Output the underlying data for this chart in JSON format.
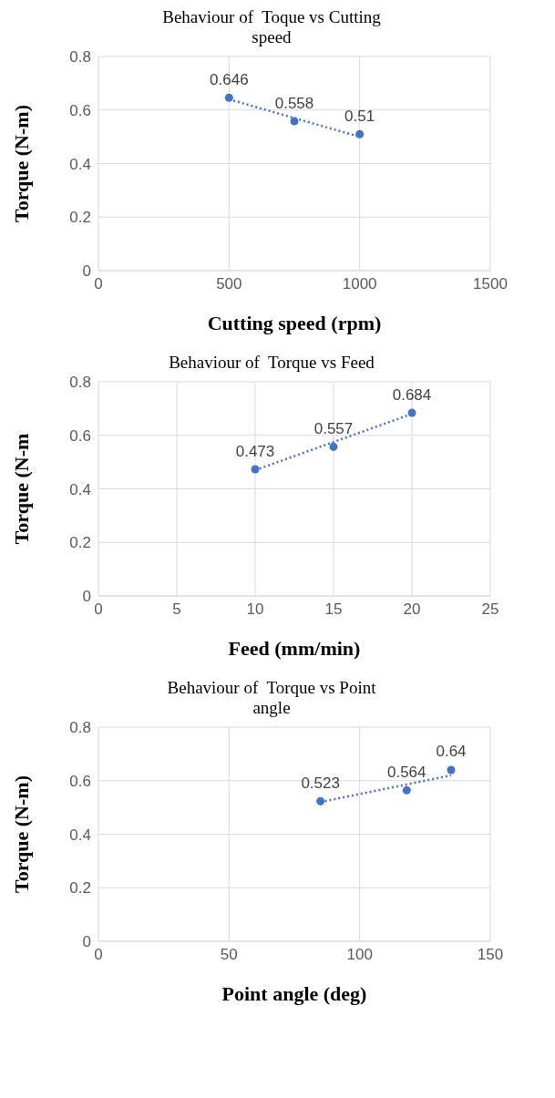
{
  "chart_data": [
    {
      "type": "scatter",
      "title": "Behaviour of  Toque vs Cutting speed",
      "xlabel": "Cutting speed (rpm)",
      "ylabel": "Torque (N-m)",
      "xlim": [
        0,
        1500
      ],
      "xticks": [
        0,
        500,
        1000,
        1500
      ],
      "ylim": [
        0,
        0.8
      ],
      "yticks": [
        0,
        0.2,
        0.4,
        0.6,
        0.8
      ],
      "grid": true,
      "x": [
        500,
        750,
        1000
      ],
      "series": [
        {
          "color": "#4472c4",
          "marker": "circle",
          "values": [
            0.646,
            0.558,
            0.51
          ],
          "value_labels": [
            "0.646",
            "0.558",
            "0.51"
          ]
        },
        {
          "type": "line",
          "color": "#4472c4",
          "marker": "none",
          "line_style": "dotted",
          "x": [
            500,
            1000
          ],
          "values": [
            0.64,
            0.5
          ]
        }
      ]
    },
    {
      "type": "scatter",
      "title": "Behaviour of  Torque vs Feed",
      "xlabel": "Feed (mm/min)",
      "ylabel": "Torque (N-m",
      "xlim": [
        0,
        25
      ],
      "xticks": [
        0,
        5,
        10,
        15,
        20,
        25
      ],
      "ylim": [
        0,
        0.8
      ],
      "yticks": [
        0,
        0.2,
        0.4,
        0.6,
        0.8
      ],
      "grid": true,
      "x": [
        10,
        15,
        20
      ],
      "series": [
        {
          "color": "#4472c4",
          "marker": "circle",
          "values": [
            0.473,
            0.557,
            0.684
          ],
          "value_labels": [
            "0.473",
            "0.557",
            "0.684"
          ]
        },
        {
          "type": "line",
          "color": "#4472c4",
          "marker": "none",
          "line_style": "dotted",
          "x": [
            10,
            20
          ],
          "values": [
            0.47,
            0.68
          ]
        }
      ]
    },
    {
      "type": "scatter",
      "title": "Behaviour of  Torque vs Point angle",
      "xlabel": "Point angle (deg)",
      "ylabel": "Torque (N-m)",
      "xlim": [
        0,
        150
      ],
      "xticks": [
        0,
        50,
        100,
        150
      ],
      "ylim": [
        0,
        0.8
      ],
      "yticks": [
        0,
        0.2,
        0.4,
        0.6,
        0.8
      ],
      "grid": true,
      "x": [
        85,
        118,
        135
      ],
      "series": [
        {
          "color": "#4472c4",
          "marker": "circle",
          "values": [
            0.523,
            0.564,
            0.64
          ],
          "value_labels": [
            "0.523",
            "0.564",
            "0.64"
          ]
        },
        {
          "type": "line",
          "color": "#4472c4",
          "marker": "none",
          "line_style": "dotted",
          "x": [
            85,
            135
          ],
          "values": [
            0.52,
            0.62
          ]
        }
      ]
    }
  ]
}
